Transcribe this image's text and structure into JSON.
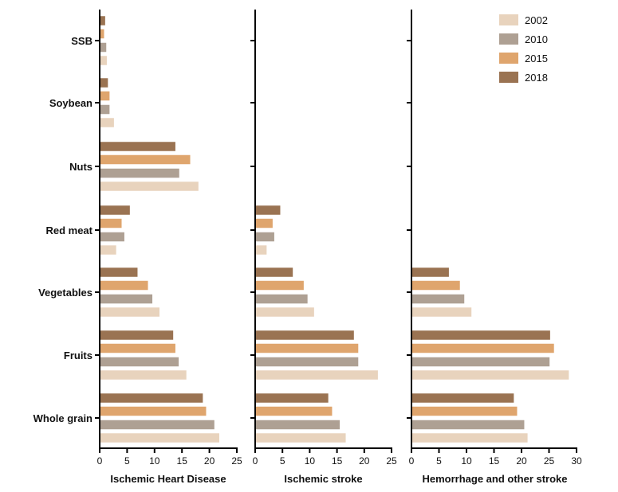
{
  "chart_data": {
    "type": "bar",
    "orientation": "horizontal",
    "categories": [
      "SSB",
      "Soybean",
      "Nuts",
      "Red meat",
      "Vegetables",
      "Fruits",
      "Whole grain"
    ],
    "legend": {
      "placement": "top-right",
      "entries": [
        "2002",
        "2010",
        "2015",
        "2018"
      ]
    },
    "colors": {
      "2002": "#e8d3bd",
      "2010": "#aea093",
      "2015": "#dfa56d",
      "2018": "#9a7352"
    },
    "panels": [
      {
        "xlabel": "Ischemic Heart Disease",
        "xlim": [
          0,
          25
        ],
        "xticks": [
          "0",
          "5",
          "10",
          "15",
          "20",
          "25"
        ],
        "series": [
          {
            "name": "2002",
            "values": [
              1.3,
              2.6,
              18.0,
              3.0,
              10.9,
              15.8,
              21.8
            ]
          },
          {
            "name": "2010",
            "values": [
              1.2,
              1.8,
              14.5,
              4.5,
              9.6,
              14.4,
              20.9
            ]
          },
          {
            "name": "2015",
            "values": [
              0.8,
              1.8,
              16.5,
              4.0,
              8.8,
              13.8,
              19.4
            ]
          },
          {
            "name": "2018",
            "values": [
              1.0,
              1.5,
              13.8,
              5.5,
              6.9,
              13.4,
              18.8
            ]
          }
        ]
      },
      {
        "xlabel": "Ischemic stroke",
        "xlim": [
          0,
          25
        ],
        "xticks": [
          "0",
          "5",
          "10",
          "15",
          "20",
          "25"
        ],
        "series": [
          {
            "name": "2002",
            "values": [
              0,
              0,
              0,
              2.1,
              10.8,
              22.5,
              16.6
            ]
          },
          {
            "name": "2010",
            "values": [
              0,
              0,
              0,
              3.5,
              9.6,
              18.9,
              15.5
            ]
          },
          {
            "name": "2015",
            "values": [
              0,
              0,
              0,
              3.2,
              8.9,
              18.9,
              14.1
            ]
          },
          {
            "name": "2018",
            "values": [
              0,
              0,
              0,
              4.6,
              6.9,
              18.1,
              13.4
            ]
          }
        ]
      },
      {
        "xlabel": "Hemorrhage and other stroke",
        "xlim": [
          0,
          30
        ],
        "xticks": [
          "0",
          "5",
          "10",
          "15",
          "20",
          "25",
          "30"
        ],
        "series": [
          {
            "name": "2002",
            "values": [
              0,
              0,
              0,
              0,
              10.9,
              28.6,
              21.1
            ]
          },
          {
            "name": "2010",
            "values": [
              0,
              0,
              0,
              0,
              9.6,
              25.1,
              20.5
            ]
          },
          {
            "name": "2015",
            "values": [
              0,
              0,
              0,
              0,
              8.8,
              25.9,
              19.2
            ]
          },
          {
            "name": "2018",
            "values": [
              0,
              0,
              0,
              0,
              6.8,
              25.2,
              18.6
            ]
          }
        ]
      }
    ]
  }
}
